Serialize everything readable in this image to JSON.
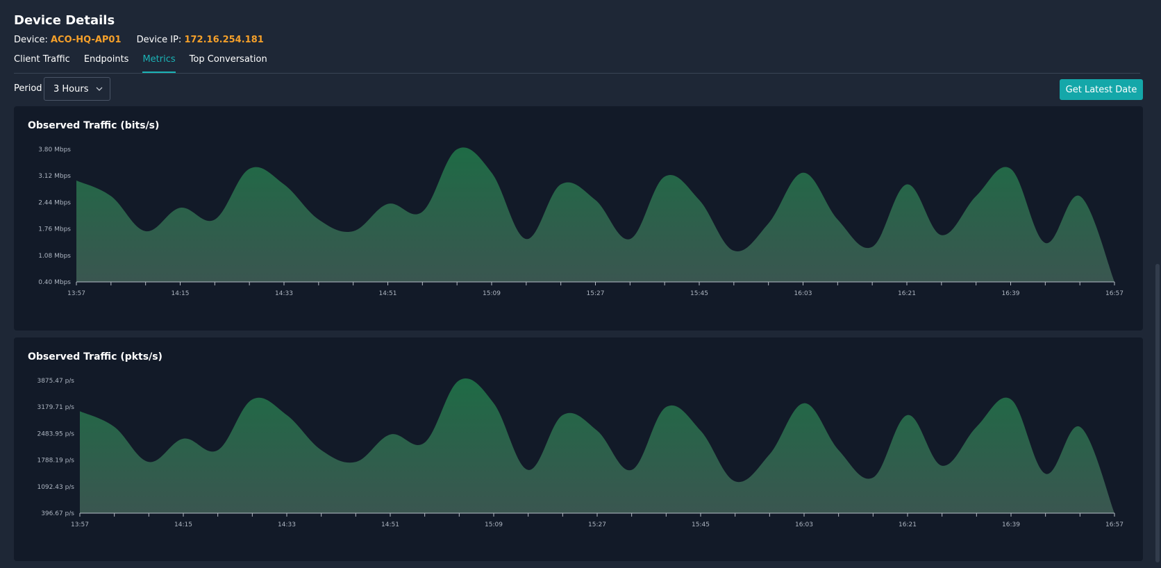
{
  "header": {
    "title": "Device Details",
    "device_label": "Device:",
    "device_value": "ACO-HQ-AP01",
    "ip_label": "Device IP:",
    "ip_value": "172.16.254.181"
  },
  "tabs": [
    {
      "label": "Client Traffic",
      "active": false
    },
    {
      "label": "Endpoints",
      "active": false
    },
    {
      "label": "Metrics",
      "active": true
    },
    {
      "label": "Top Conversation",
      "active": false
    }
  ],
  "controls": {
    "period_label": "Period",
    "period_value": "3 Hours",
    "latest_button": "Get Latest Date"
  },
  "colors": {
    "accent": "#1bb3b6",
    "highlight": "#f5a02a",
    "area_top": "#1e6b45",
    "area_bottom": "#3a5650",
    "card_bg": "#121a28",
    "page_bg": "#1e2736"
  },
  "chart_data": [
    {
      "type": "area",
      "title": "Observed Traffic (bits/s)",
      "y_tick_labels": [
        "3.80 Mbps",
        "3.12 Mbps",
        "2.44 Mbps",
        "1.76 Mbps",
        "1.08 Mbps",
        "0.40 Mbps"
      ],
      "ylim": [
        0.4,
        3.8
      ],
      "y_unit": "Mbps",
      "x_tick_labels": [
        "13:57",
        "14:15",
        "14:33",
        "14:51",
        "15:09",
        "15:27",
        "15:45",
        "16:03",
        "16:21",
        "16:39",
        "16:57"
      ],
      "x_minutes": [
        0,
        6,
        12,
        18,
        24,
        30,
        36,
        42,
        48,
        54,
        60,
        66,
        72,
        78,
        84,
        90,
        96,
        102,
        108,
        114,
        120,
        126,
        132,
        138,
        144,
        150,
        156,
        162,
        168,
        174,
        180
      ],
      "series": [
        {
          "values": [
            3.0,
            2.6,
            1.7,
            2.3,
            2.0,
            3.3,
            2.9,
            2.0,
            1.7,
            2.4,
            2.2,
            3.8,
            3.2,
            1.5,
            2.9,
            2.5,
            1.5,
            3.1,
            2.5,
            1.2,
            1.9,
            3.2,
            2.0,
            1.3,
            2.9,
            1.6,
            2.6,
            3.3,
            1.4,
            2.6,
            0.4
          ]
        }
      ]
    },
    {
      "type": "area",
      "title": "Observed Traffic (pkts/s)",
      "y_tick_labels": [
        "3875.47 p/s",
        "3179.71 p/s",
        "2483.95 p/s",
        "1788.19 p/s",
        "1092.43 p/s",
        "396.67 p/s"
      ],
      "ylim": [
        396.67,
        3875.47
      ],
      "y_unit": "p/s",
      "x_tick_labels": [
        "13:57",
        "14:15",
        "14:33",
        "14:51",
        "15:09",
        "15:27",
        "15:45",
        "16:03",
        "16:21",
        "16:39",
        "16:57"
      ],
      "x_minutes": [
        0,
        6,
        12,
        18,
        24,
        30,
        36,
        42,
        48,
        54,
        60,
        66,
        72,
        78,
        84,
        90,
        96,
        102,
        108,
        114,
        120,
        126,
        132,
        138,
        144,
        150,
        156,
        162,
        168,
        174,
        180
      ],
      "series": [
        {
          "values": [
            3070,
            2660,
            1740,
            2350,
            2050,
            3380,
            2970,
            2050,
            1740,
            2460,
            2250,
            3880,
            3280,
            1530,
            2970,
            2560,
            1530,
            3180,
            2560,
            1230,
            1940,
            3280,
            2050,
            1330,
            2970,
            1640,
            2660,
            3380,
            1430,
            2660,
            397
          ]
        }
      ]
    }
  ]
}
